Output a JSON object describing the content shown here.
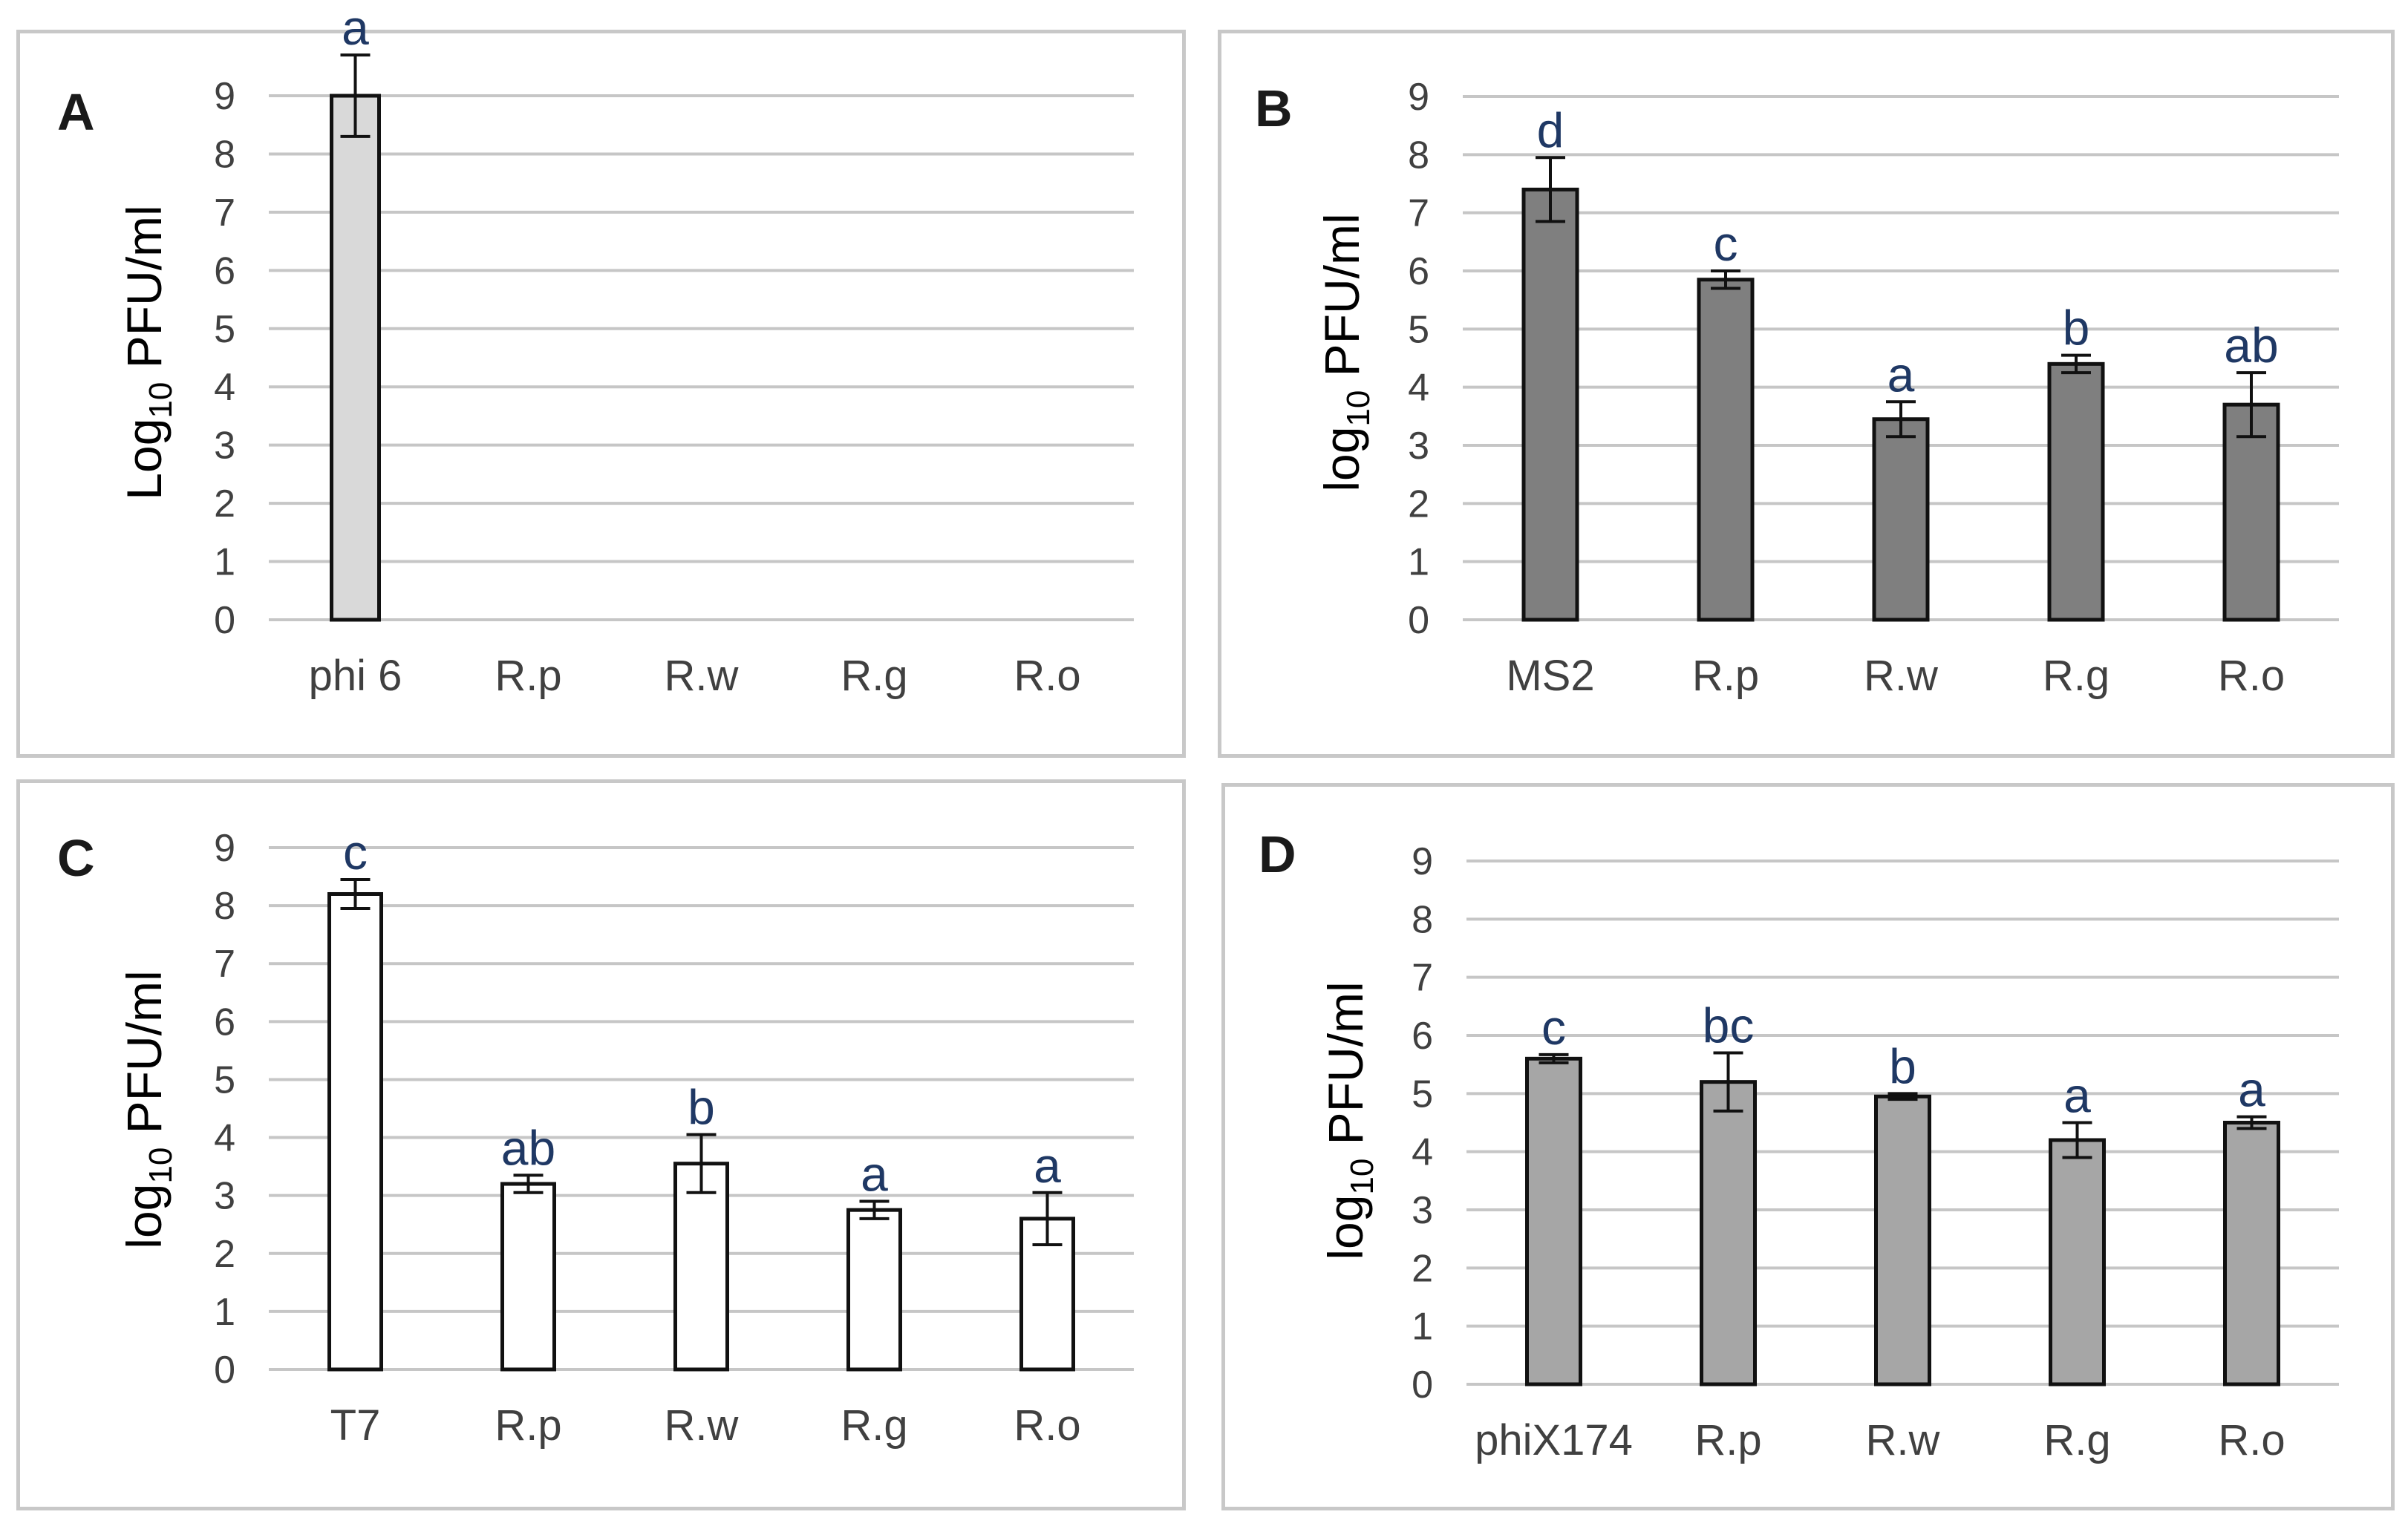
{
  "chart_data": [
    {
      "panel": "A",
      "type": "bar",
      "ylabel_main": "Log",
      "ylabel_sub": "10",
      "ylabel_rest": " PFU/ml",
      "ylim": [
        0,
        9
      ],
      "yticks": [
        "0",
        "1",
        "2",
        "3",
        "4",
        "5",
        "6",
        "7",
        "8",
        "9"
      ],
      "categories": [
        "phi 6",
        "R.p",
        "R.w",
        "R.g",
        "R.o"
      ],
      "values": [
        9.0,
        null,
        null,
        null,
        null
      ],
      "errors": [
        0.7,
        null,
        null,
        null,
        null
      ],
      "labels": [
        "a",
        "",
        "",
        "",
        ""
      ],
      "bar_color": "#d9d9d9"
    },
    {
      "panel": "B",
      "type": "bar",
      "ylabel_main": "log",
      "ylabel_sub": "10",
      "ylabel_rest": " PFU/ml",
      "ylim": [
        0,
        9
      ],
      "yticks": [
        "0",
        "1",
        "2",
        "3",
        "4",
        "5",
        "6",
        "7",
        "8",
        "9"
      ],
      "categories": [
        "MS2",
        "R.p",
        "R.w",
        "R.g",
        "R.o"
      ],
      "values": [
        7.4,
        5.85,
        3.45,
        4.4,
        3.7
      ],
      "errors": [
        0.55,
        0.15,
        0.3,
        0.15,
        0.55
      ],
      "labels": [
        "d",
        "c",
        "a",
        "b",
        "ab"
      ],
      "bar_color": "#7f7f7f"
    },
    {
      "panel": "C",
      "type": "bar",
      "ylabel_main": "log",
      "ylabel_sub": "10",
      "ylabel_rest": " PFU/ml",
      "ylim": [
        0,
        9
      ],
      "yticks": [
        "0",
        "1",
        "2",
        "3",
        "4",
        "5",
        "6",
        "7",
        "8",
        "9"
      ],
      "categories": [
        "T7",
        "R.p",
        "R.w",
        "R.g",
        "R.o"
      ],
      "values": [
        8.2,
        3.2,
        3.55,
        2.75,
        2.6
      ],
      "errors": [
        0.25,
        0.15,
        0.5,
        0.15,
        0.45
      ],
      "labels": [
        "c",
        "ab",
        "b",
        "a",
        "a"
      ],
      "bar_color": "#ffffff"
    },
    {
      "panel": "D",
      "type": "bar",
      "ylabel_main": "log",
      "ylabel_sub": "10",
      "ylabel_rest": " PFU/ml",
      "ylim": [
        0,
        9
      ],
      "yticks": [
        "0",
        "1",
        "2",
        "3",
        "4",
        "5",
        "6",
        "7",
        "8",
        "9"
      ],
      "categories": [
        "phiX174",
        "R.p",
        "R.w",
        "R.g",
        "R.o"
      ],
      "values": [
        5.6,
        5.2,
        4.95,
        4.2,
        4.5
      ],
      "errors": [
        0.07,
        0.5,
        0.05,
        0.3,
        0.1
      ],
      "labels": [
        "c",
        "bc",
        "b",
        "a",
        "a"
      ],
      "bar_color": "#a6a6a6"
    }
  ]
}
